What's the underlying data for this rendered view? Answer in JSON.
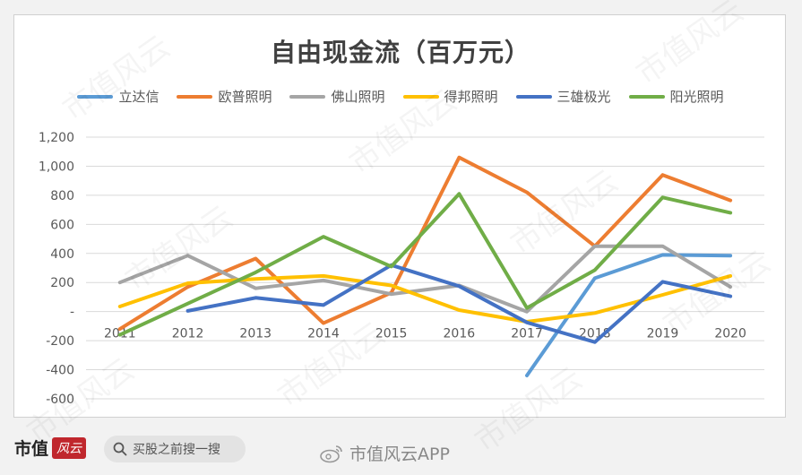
{
  "chart_data": {
    "type": "line",
    "title": "自由现金流（百万元）",
    "categories": [
      "2011",
      "2012",
      "2013",
      "2014",
      "2015",
      "2016",
      "2017",
      "2018",
      "2019",
      "2020"
    ],
    "y_ticks": [
      "1,200",
      "1,000",
      "800",
      "600",
      "400",
      "200",
      "-",
      "-200",
      "-400",
      "-600"
    ],
    "ylim": [
      -600,
      1200
    ],
    "grid": true,
    "legend_position": "top",
    "series": [
      {
        "name": "立达信",
        "color": "#5b9bd5",
        "values": [
          null,
          null,
          null,
          null,
          null,
          null,
          -440,
          230,
          390,
          385
        ]
      },
      {
        "name": "欧普照明",
        "color": "#ed7d31",
        "values": [
          -120,
          170,
          365,
          -80,
          130,
          1060,
          820,
          450,
          940,
          765
        ]
      },
      {
        "name": "佛山照明",
        "color": "#a5a5a5",
        "values": [
          200,
          385,
          160,
          215,
          120,
          180,
          0,
          450,
          450,
          170
        ]
      },
      {
        "name": "得邦照明",
        "color": "#ffc000",
        "values": [
          35,
          195,
          225,
          245,
          180,
          10,
          -70,
          -10,
          115,
          245
        ]
      },
      {
        "name": "三雄极光",
        "color": "#4472c4",
        "values": [
          null,
          5,
          95,
          45,
          320,
          175,
          -75,
          -210,
          205,
          105
        ]
      },
      {
        "name": "阳光照明",
        "color": "#70ad47",
        "values": [
          -160,
          55,
          270,
          515,
          310,
          810,
          25,
          285,
          785,
          680
        ]
      }
    ]
  },
  "footer": {
    "logo_text": "市值",
    "logo_mark": "风云",
    "search_placeholder": "买股之前搜一搜",
    "brand_text": "市值风云APP"
  },
  "watermark_text": "市值风云",
  "icons": {
    "search": "search-icon",
    "weibo": "weibo-icon"
  }
}
